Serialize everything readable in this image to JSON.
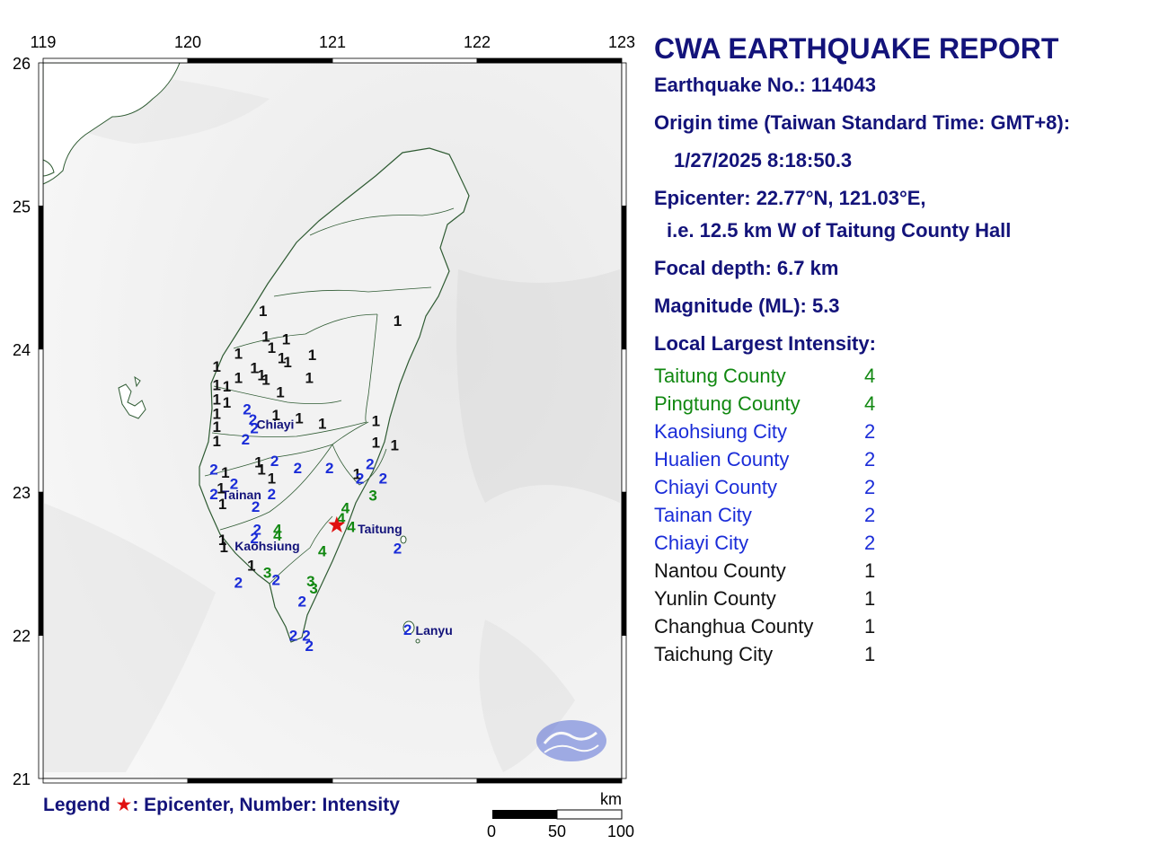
{
  "report": {
    "title": "CWA EARTHQUAKE REPORT",
    "quake_no": "Earthquake No.: 114043",
    "origin_label": "Origin time (Taiwan Standard Time: GMT+8):",
    "origin_time": "1/27/2025  8:18:50.3",
    "epicenter": "Epicenter: 22.77°N, 121.03°E,",
    "epicenter_rel": "i.e. 12.5 km W of Taitung County Hall",
    "depth": "Focal depth: 6.7 km",
    "magnitude": "Magnitude (ML): 5.3",
    "intensity_heading": "Local Largest Intensity:"
  },
  "regions": [
    {
      "name": "Taitung County",
      "value": "4",
      "color": "#118811"
    },
    {
      "name": "Pingtung County",
      "value": "4",
      "color": "#118811"
    },
    {
      "name": "Kaohsiung City",
      "value": "2",
      "color": "#1a2cd8"
    },
    {
      "name": "Hualien County",
      "value": "2",
      "color": "#1a2cd8"
    },
    {
      "name": "Chiayi County",
      "value": "2",
      "color": "#1a2cd8"
    },
    {
      "name": "Tainan City",
      "value": "2",
      "color": "#1a2cd8"
    },
    {
      "name": "Chiayi City",
      "value": "2",
      "color": "#1a2cd8"
    },
    {
      "name": "Nantou County",
      "value": "1",
      "color": "#111111"
    },
    {
      "name": "Yunlin County",
      "value": "1",
      "color": "#111111"
    },
    {
      "name": "Changhua County",
      "value": "1",
      "color": "#111111"
    },
    {
      "name": "Taichung City",
      "value": "1",
      "color": "#111111"
    }
  ],
  "map": {
    "lon_labels": [
      "119",
      "120",
      "121",
      "122",
      "123"
    ],
    "lat_labels": [
      "26",
      "25",
      "24",
      "23",
      "22",
      "21"
    ],
    "epicenter": {
      "lat": 22.77,
      "lon": 121.03
    },
    "cities": [
      {
        "name": "Chiayi",
        "lat": 23.48,
        "lon": 120.45
      },
      {
        "name": "Tainan",
        "lat": 22.99,
        "lon": 120.21
      },
      {
        "name": "Kaohsiung",
        "lat": 22.63,
        "lon": 120.3
      },
      {
        "name": "Taitung",
        "lat": 22.75,
        "lon": 121.15
      },
      {
        "name": "Lanyu",
        "lat": 22.04,
        "lon": 121.55
      }
    ],
    "stations": [
      {
        "lat": 24.27,
        "lon": 120.52,
        "v": 1
      },
      {
        "lat": 24.09,
        "lon": 120.54,
        "v": 1
      },
      {
        "lat": 24.07,
        "lon": 120.68,
        "v": 1
      },
      {
        "lat": 24.01,
        "lon": 120.58,
        "v": 1
      },
      {
        "lat": 23.97,
        "lon": 120.35,
        "v": 1
      },
      {
        "lat": 23.94,
        "lon": 120.65,
        "v": 1
      },
      {
        "lat": 23.96,
        "lon": 120.86,
        "v": 1
      },
      {
        "lat": 23.91,
        "lon": 120.69,
        "v": 1
      },
      {
        "lat": 23.88,
        "lon": 120.2,
        "v": 1
      },
      {
        "lat": 23.87,
        "lon": 120.46,
        "v": 1
      },
      {
        "lat": 23.82,
        "lon": 120.51,
        "v": 1
      },
      {
        "lat": 23.8,
        "lon": 120.35,
        "v": 1
      },
      {
        "lat": 23.79,
        "lon": 120.54,
        "v": 1
      },
      {
        "lat": 23.8,
        "lon": 120.84,
        "v": 1
      },
      {
        "lat": 23.75,
        "lon": 120.2,
        "v": 1
      },
      {
        "lat": 23.74,
        "lon": 120.27,
        "v": 1
      },
      {
        "lat": 23.7,
        "lon": 120.64,
        "v": 1
      },
      {
        "lat": 23.65,
        "lon": 120.2,
        "v": 1
      },
      {
        "lat": 23.63,
        "lon": 120.27,
        "v": 1
      },
      {
        "lat": 23.55,
        "lon": 120.2,
        "v": 1
      },
      {
        "lat": 23.54,
        "lon": 120.61,
        "v": 1
      },
      {
        "lat": 23.52,
        "lon": 120.77,
        "v": 1
      },
      {
        "lat": 23.46,
        "lon": 120.2,
        "v": 1
      },
      {
        "lat": 23.36,
        "lon": 120.2,
        "v": 1
      },
      {
        "lat": 23.48,
        "lon": 120.93,
        "v": 1
      },
      {
        "lat": 23.5,
        "lon": 121.3,
        "v": 1
      },
      {
        "lat": 23.35,
        "lon": 121.3,
        "v": 1
      },
      {
        "lat": 23.33,
        "lon": 121.43,
        "v": 1
      },
      {
        "lat": 23.16,
        "lon": 120.51,
        "v": 1
      },
      {
        "lat": 23.14,
        "lon": 120.26,
        "v": 1
      },
      {
        "lat": 23.21,
        "lon": 120.49,
        "v": 1
      },
      {
        "lat": 23.13,
        "lon": 121.17,
        "v": 1
      },
      {
        "lat": 23.1,
        "lon": 120.58,
        "v": 1
      },
      {
        "lat": 23.03,
        "lon": 120.23,
        "v": 1
      },
      {
        "lat": 22.92,
        "lon": 120.24,
        "v": 1
      },
      {
        "lat": 22.67,
        "lon": 120.24,
        "v": 1
      },
      {
        "lat": 22.62,
        "lon": 120.25,
        "v": 1
      },
      {
        "lat": 22.49,
        "lon": 120.44,
        "v": 1
      },
      {
        "lat": 24.2,
        "lon": 121.45,
        "v": 1
      },
      {
        "lat": 23.58,
        "lon": 120.41,
        "v": 2
      },
      {
        "lat": 23.51,
        "lon": 120.45,
        "v": 2
      },
      {
        "lat": 23.45,
        "lon": 120.46,
        "v": 2
      },
      {
        "lat": 23.37,
        "lon": 120.4,
        "v": 2
      },
      {
        "lat": 23.22,
        "lon": 120.6,
        "v": 2
      },
      {
        "lat": 23.17,
        "lon": 120.76,
        "v": 2
      },
      {
        "lat": 23.17,
        "lon": 120.98,
        "v": 2
      },
      {
        "lat": 23.16,
        "lon": 120.18,
        "v": 2
      },
      {
        "lat": 23.1,
        "lon": 121.19,
        "v": 2
      },
      {
        "lat": 23.2,
        "lon": 121.26,
        "v": 2
      },
      {
        "lat": 23.1,
        "lon": 121.35,
        "v": 2
      },
      {
        "lat": 22.99,
        "lon": 120.18,
        "v": 2
      },
      {
        "lat": 22.99,
        "lon": 120.58,
        "v": 2
      },
      {
        "lat": 23.06,
        "lon": 120.32,
        "v": 2
      },
      {
        "lat": 22.9,
        "lon": 120.47,
        "v": 2
      },
      {
        "lat": 22.74,
        "lon": 120.48,
        "v": 2
      },
      {
        "lat": 22.68,
        "lon": 120.46,
        "v": 2
      },
      {
        "lat": 22.61,
        "lon": 121.45,
        "v": 2
      },
      {
        "lat": 22.39,
        "lon": 120.61,
        "v": 2
      },
      {
        "lat": 22.37,
        "lon": 120.35,
        "v": 2
      },
      {
        "lat": 22.24,
        "lon": 120.79,
        "v": 2
      },
      {
        "lat": 22.0,
        "lon": 120.73,
        "v": 2
      },
      {
        "lat": 22.0,
        "lon": 120.82,
        "v": 2
      },
      {
        "lat": 21.93,
        "lon": 120.84,
        "v": 2
      },
      {
        "lat": 22.04,
        "lon": 121.52,
        "v": 2
      },
      {
        "lat": 22.44,
        "lon": 120.55,
        "v": 3
      },
      {
        "lat": 22.38,
        "lon": 120.85,
        "v": 3
      },
      {
        "lat": 22.33,
        "lon": 120.87,
        "v": 3
      },
      {
        "lat": 22.98,
        "lon": 121.28,
        "v": 3
      },
      {
        "lat": 22.89,
        "lon": 121.09,
        "v": 4
      },
      {
        "lat": 22.82,
        "lon": 121.06,
        "v": 4
      },
      {
        "lat": 22.76,
        "lon": 121.13,
        "v": 4
      },
      {
        "lat": 22.74,
        "lon": 120.62,
        "v": 4
      },
      {
        "lat": 22.7,
        "lon": 120.62,
        "v": 4
      },
      {
        "lat": 22.59,
        "lon": 120.93,
        "v": 4
      }
    ]
  },
  "legend": {
    "prefix": "Legend",
    "star": "★",
    "text": ": Epicenter, Number: Intensity"
  },
  "scale": {
    "unit": "km",
    "labels": [
      "0",
      "50",
      "100"
    ]
  },
  "colors": {
    "i1": "#111111",
    "i2": "#1a2cd8",
    "i3": "#118811",
    "i4": "#118811",
    "epicenter": "#e01010",
    "text": "#13137a"
  }
}
